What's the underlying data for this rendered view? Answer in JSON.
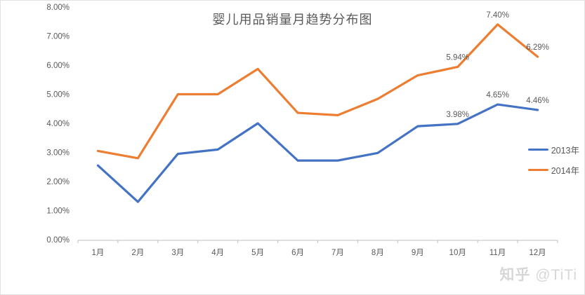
{
  "watermark": {
    "brand": "知乎",
    "handle": "@TiTi"
  },
  "colors": {
    "axis_line": "#bfbfbf",
    "text_gray": "#595959",
    "watermark_gray": "#d7d7d7",
    "series_2013": "#4472C4",
    "series_2014": "#ED7D31"
  },
  "chart_data": {
    "type": "line",
    "title": "婴儿用品销量月趋势分布图",
    "categories": [
      "1月",
      "2月",
      "3月",
      "4月",
      "5月",
      "6月",
      "7月",
      "8月",
      "9月",
      "10月",
      "11月",
      "12月"
    ],
    "series": [
      {
        "name": "2013年",
        "color": "#4472C4",
        "values": [
          2.55,
          1.3,
          2.95,
          3.1,
          4.0,
          2.72,
          2.72,
          2.98,
          3.9,
          3.98,
          4.65,
          4.46
        ],
        "point_labels": {
          "9": "3.98%",
          "10": "4.65%",
          "11": "4.46%"
        }
      },
      {
        "name": "2014年",
        "color": "#ED7D31",
        "values": [
          3.05,
          2.8,
          5.0,
          5.0,
          5.87,
          4.36,
          4.28,
          4.84,
          5.65,
          5.94,
          7.4,
          6.29
        ],
        "point_labels": {
          "9": "5.94%",
          "10": "7.40%",
          "11": "6.29%"
        }
      }
    ],
    "xlabel": "",
    "ylabel": "",
    "y_axis": {
      "min": 0,
      "max": 8,
      "step": 1,
      "tick_labels": [
        "0.00%",
        "1.00%",
        "2.00%",
        "3.00%",
        "4.00%",
        "5.00%",
        "6.00%",
        "7.00%",
        "8.00%"
      ]
    },
    "grid": false,
    "legend_position": "middle-right"
  }
}
